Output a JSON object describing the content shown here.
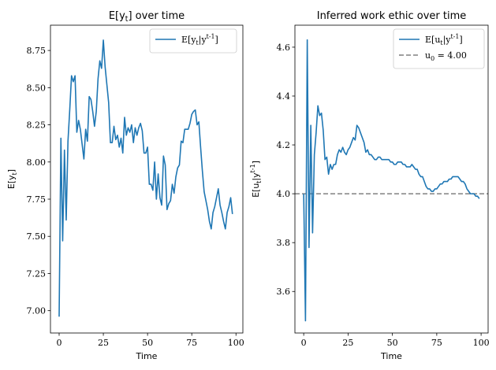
{
  "colors": {
    "series": "#1f77b4",
    "reference": "#808080",
    "axis": "#000000",
    "legend_border": "#cccccc"
  },
  "chart_data": [
    {
      "type": "line",
      "title": "E[y_t] over time",
      "xlabel": "Time",
      "ylabel": "E[y_t]",
      "xlim": [
        -4.9,
        103.9
      ],
      "ylim": [
        6.85,
        8.92
      ],
      "xticks": [
        0,
        25,
        50,
        75,
        100
      ],
      "xtick_labels": [
        "0",
        "25",
        "50",
        "75",
        "100"
      ],
      "yticks": [
        7.0,
        7.25,
        7.5,
        7.75,
        8.0,
        8.25,
        8.5,
        8.75
      ],
      "ytick_labels": [
        "7.00",
        "7.25",
        "7.50",
        "7.75",
        "8.00",
        "8.25",
        "8.50",
        "8.75"
      ],
      "legend": {
        "position": "upper right",
        "entries": [
          {
            "label": "E[y_t|y^{t-1}]",
            "style": "solid"
          }
        ]
      },
      "series": [
        {
          "name": "E[y_t|y^{t-1}]",
          "x": [
            0,
            1,
            2,
            3,
            4,
            5,
            6,
            7,
            8,
            9,
            10,
            11,
            12,
            13,
            14,
            15,
            16,
            17,
            18,
            19,
            20,
            21,
            22,
            23,
            24,
            25,
            26,
            27,
            28,
            29,
            30,
            31,
            32,
            33,
            34,
            35,
            36,
            37,
            38,
            39,
            40,
            41,
            42,
            43,
            44,
            45,
            46,
            47,
            48,
            49,
            50,
            51,
            52,
            53,
            54,
            55,
            56,
            57,
            58,
            59,
            60,
            61,
            62,
            63,
            64,
            65,
            66,
            67,
            68,
            69,
            70,
            71,
            72,
            73,
            74,
            75,
            76,
            77,
            78,
            79,
            80,
            81,
            82,
            83,
            84,
            85,
            86,
            87,
            88,
            89,
            90,
            91,
            92,
            93,
            94,
            95,
            96,
            97,
            98
          ],
          "y": [
            6.96,
            8.16,
            7.47,
            8.08,
            7.61,
            8.14,
            8.35,
            8.58,
            8.54,
            8.58,
            8.2,
            8.28,
            8.22,
            8.12,
            8.02,
            8.22,
            8.14,
            8.44,
            8.42,
            8.34,
            8.24,
            8.34,
            8.56,
            8.68,
            8.63,
            8.82,
            8.64,
            8.52,
            8.4,
            8.13,
            8.13,
            8.24,
            8.15,
            8.18,
            8.1,
            8.16,
            8.06,
            8.3,
            8.18,
            8.23,
            8.2,
            8.25,
            8.13,
            8.23,
            8.18,
            8.23,
            8.26,
            8.21,
            8.06,
            8.06,
            8.1,
            7.85,
            7.85,
            7.81,
            8.0,
            7.75,
            7.92,
            7.76,
            7.71,
            8.04,
            7.98,
            7.68,
            7.72,
            7.74,
            7.85,
            7.79,
            7.9,
            7.96,
            7.98,
            8.14,
            8.13,
            8.22,
            8.22,
            8.22,
            8.26,
            8.32,
            8.34,
            8.35,
            8.25,
            8.27,
            8.1,
            7.94,
            7.8,
            7.74,
            7.68,
            7.6,
            7.55,
            7.66,
            7.7,
            7.76,
            7.82,
            7.71,
            7.66,
            7.6,
            7.55,
            7.66,
            7.7,
            7.76,
            7.65
          ]
        }
      ]
    },
    {
      "type": "line",
      "title": "Inferred work ethic over time",
      "xlabel": "Time",
      "ylabel": "E[u_t|y^{t-1}]",
      "xlim": [
        -4.95,
        103.95
      ],
      "ylim": [
        3.43,
        4.69
      ],
      "xticks": [
        0,
        25,
        50,
        75,
        100
      ],
      "xtick_labels": [
        "0",
        "25",
        "50",
        "75",
        "100"
      ],
      "yticks": [
        3.6,
        3.8,
        4.0,
        4.2,
        4.4,
        4.6
      ],
      "ytick_labels": [
        "3.6",
        "3.8",
        "4.0",
        "4.2",
        "4.4",
        "4.6"
      ],
      "legend": {
        "position": "upper right",
        "entries": [
          {
            "label": "E[u_t|y^{t-1}]",
            "style": "solid"
          },
          {
            "label": "u_0 = 4.00",
            "style": "dashed"
          }
        ]
      },
      "reference_line": {
        "y": 4.0,
        "label": "u_0 = 4.00",
        "style": "dashed"
      },
      "series": [
        {
          "name": "E[u_t|y^{t-1}]",
          "x": [
            0,
            1,
            2,
            3,
            4,
            5,
            6,
            7,
            8,
            9,
            10,
            11,
            12,
            13,
            14,
            15,
            16,
            17,
            18,
            19,
            20,
            21,
            22,
            23,
            24,
            25,
            26,
            27,
            28,
            29,
            30,
            31,
            32,
            33,
            34,
            35,
            36,
            37,
            38,
            39,
            40,
            41,
            42,
            43,
            44,
            45,
            46,
            47,
            48,
            49,
            50,
            51,
            52,
            53,
            54,
            55,
            56,
            57,
            58,
            59,
            60,
            61,
            62,
            63,
            64,
            65,
            66,
            67,
            68,
            69,
            70,
            71,
            72,
            73,
            74,
            75,
            76,
            77,
            78,
            79,
            80,
            81,
            82,
            83,
            84,
            85,
            86,
            87,
            88,
            89,
            90,
            91,
            92,
            93,
            94,
            95,
            96,
            97,
            98,
            99
          ],
          "y": [
            4.0,
            3.48,
            4.63,
            3.78,
            4.28,
            3.84,
            4.16,
            4.25,
            4.36,
            4.32,
            4.33,
            4.26,
            4.14,
            4.15,
            4.08,
            4.12,
            4.1,
            4.12,
            4.12,
            4.16,
            4.18,
            4.17,
            4.19,
            4.17,
            4.16,
            4.18,
            4.19,
            4.21,
            4.23,
            4.22,
            4.28,
            4.27,
            4.25,
            4.23,
            4.21,
            4.17,
            4.18,
            4.16,
            4.16,
            4.15,
            4.14,
            4.14,
            4.15,
            4.15,
            4.14,
            4.14,
            4.14,
            4.14,
            4.14,
            4.13,
            4.13,
            4.12,
            4.12,
            4.13,
            4.13,
            4.13,
            4.12,
            4.12,
            4.11,
            4.11,
            4.11,
            4.12,
            4.11,
            4.1,
            4.1,
            4.08,
            4.07,
            4.07,
            4.05,
            4.03,
            4.02,
            4.02,
            4.01,
            4.01,
            4.02,
            4.02,
            4.03,
            4.04,
            4.04,
            4.05,
            4.05,
            4.05,
            4.06,
            4.06,
            4.07,
            4.07,
            4.07,
            4.07,
            4.06,
            4.05,
            4.05,
            4.04,
            4.02,
            4.01,
            4.0,
            4.0,
            4.0,
            3.99,
            3.99,
            3.98
          ]
        }
      ]
    }
  ]
}
